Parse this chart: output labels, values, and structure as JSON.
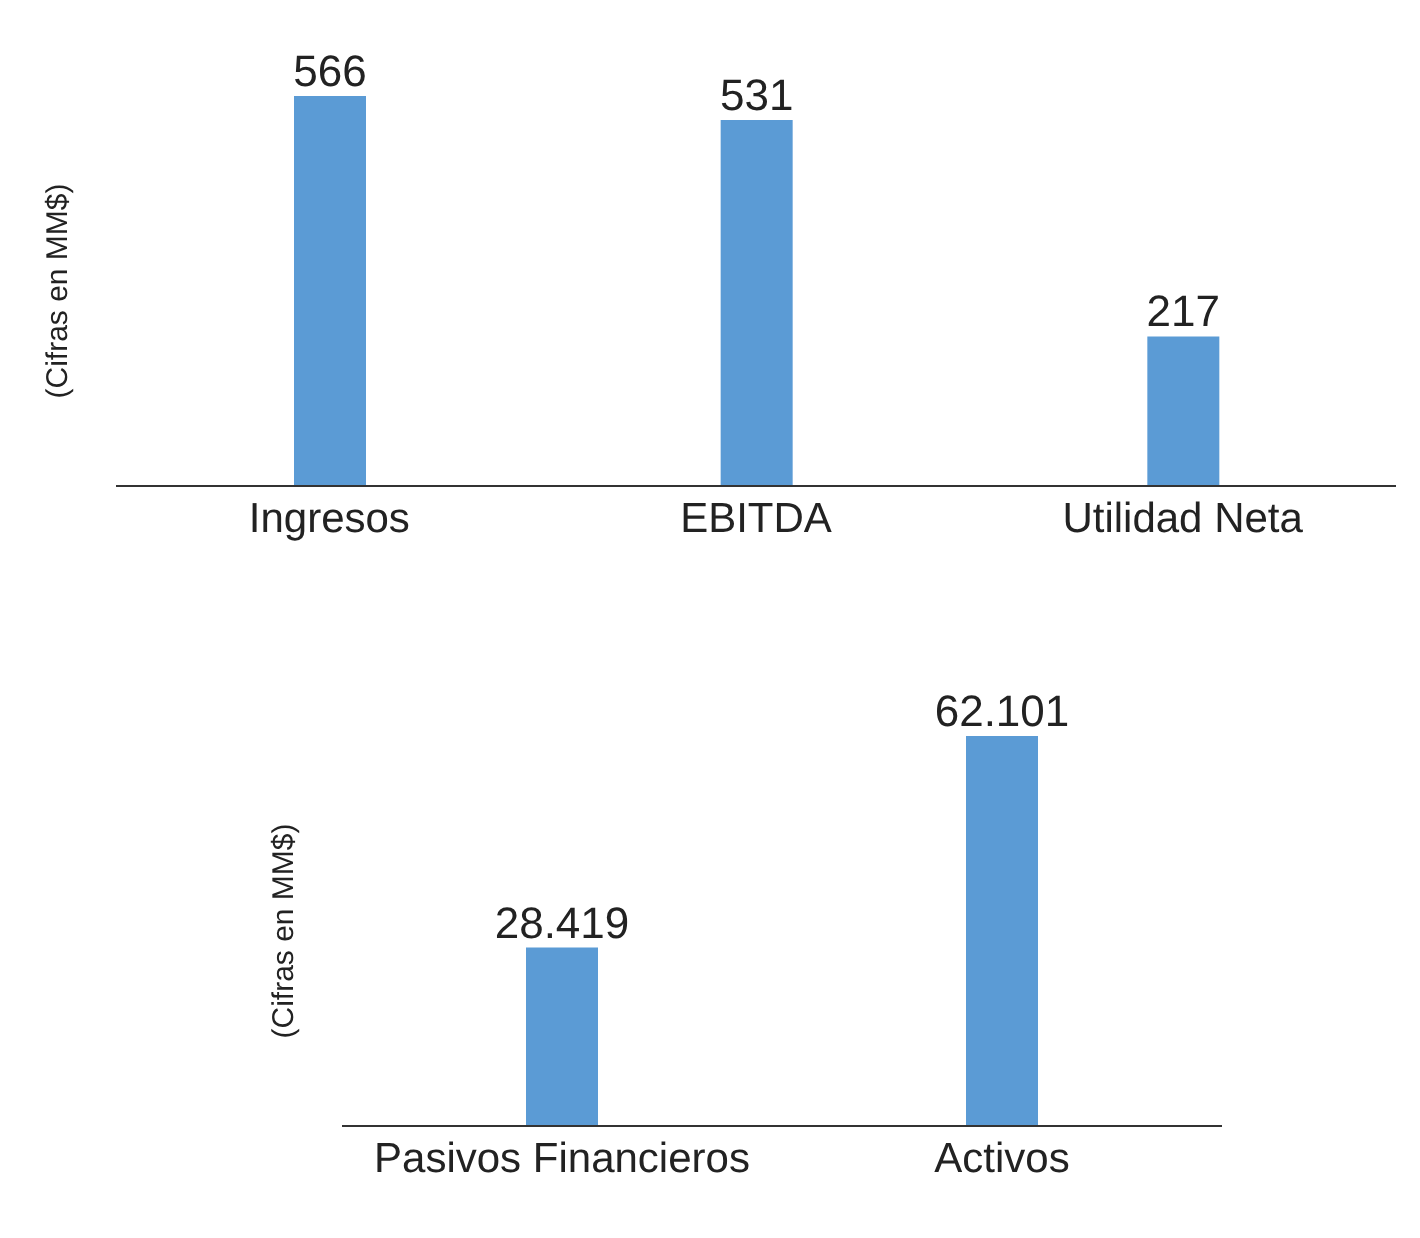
{
  "chart_data": [
    {
      "type": "bar",
      "ylabel": "(Cifras en MM$)",
      "categories": [
        "Ingresos",
        "EBITDA",
        "Utilidad Neta"
      ],
      "values": [
        566,
        531,
        217
      ],
      "color": "#5b9bd5",
      "data_labels": true,
      "grid": false,
      "legend": false
    },
    {
      "type": "bar",
      "ylabel": "(Cifras en MM$)",
      "categories": [
        "Pasivos Financieros",
        "Activos"
      ],
      "values": [
        28419,
        62101
      ],
      "value_labels": [
        "28.419",
        "62.101"
      ],
      "color": "#5b9bd5",
      "grid": false,
      "legend": false
    }
  ]
}
